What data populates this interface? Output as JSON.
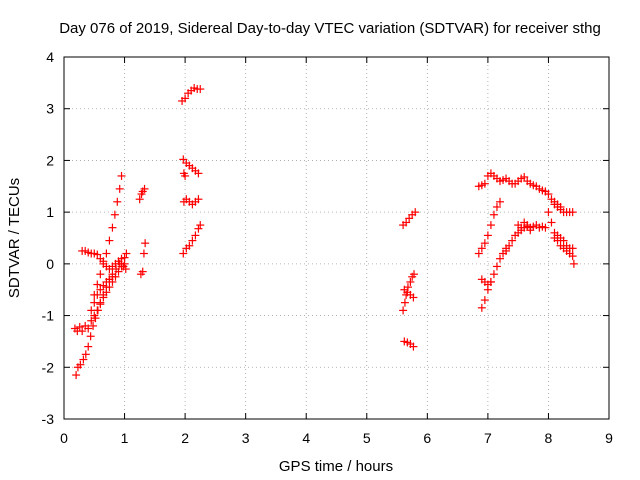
{
  "chart_data": {
    "type": "scatter",
    "title": "Day 076 of 2019, Sidereal Day-to-day VTEC variation (SDTVAR) for receiver sthg",
    "xlabel": "GPS time / hours",
    "ylabel": "SDTVAR / TECUs",
    "xlim": [
      0,
      9
    ],
    "ylim": [
      -3,
      4
    ],
    "xticks": [
      0,
      1,
      2,
      3,
      4,
      5,
      6,
      7,
      8,
      9
    ],
    "yticks": [
      -3,
      -2,
      -1,
      0,
      1,
      2,
      3,
      4
    ],
    "grid": true,
    "marker": "+",
    "marker_color": "#ff0000",
    "series": [
      {
        "points": [
          [
            0.18,
            -1.25
          ],
          [
            0.22,
            -1.3
          ],
          [
            0.26,
            -1.22
          ],
          [
            0.3,
            -1.3
          ],
          [
            0.35,
            -1.2
          ],
          [
            0.4,
            -1.25
          ],
          [
            0.45,
            -1.1
          ],
          [
            0.5,
            -1.0
          ],
          [
            0.55,
            -0.9
          ],
          [
            0.6,
            -0.78
          ],
          [
            0.65,
            -0.65
          ],
          [
            0.7,
            -0.55
          ],
          [
            0.75,
            -0.45
          ],
          [
            0.8,
            -0.35
          ],
          [
            0.85,
            -0.25
          ],
          [
            0.9,
            -0.15
          ],
          [
            0.95,
            -0.05
          ],
          [
            1.0,
            0.0
          ],
          [
            0.2,
            -2.15
          ],
          [
            0.23,
            -2.0
          ],
          [
            0.27,
            -1.95
          ],
          [
            0.32,
            -1.85
          ],
          [
            0.36,
            -1.75
          ],
          [
            0.4,
            -1.6
          ],
          [
            0.44,
            -1.4
          ],
          [
            0.48,
            -1.2
          ],
          [
            0.52,
            -1.05
          ],
          [
            0.56,
            -0.9
          ],
          [
            0.6,
            -0.75
          ],
          [
            0.65,
            -0.6
          ],
          [
            0.7,
            -0.45
          ],
          [
            0.75,
            -0.3
          ],
          [
            0.8,
            -0.2
          ],
          [
            0.86,
            -0.1
          ],
          [
            0.92,
            0.0
          ],
          [
            0.98,
            -0.05
          ],
          [
            1.02,
            -0.1
          ],
          [
            0.45,
            -0.9
          ],
          [
            0.5,
            -0.6
          ],
          [
            0.55,
            -0.4
          ],
          [
            0.6,
            -0.2
          ],
          [
            0.65,
            0.0
          ],
          [
            0.7,
            0.2
          ],
          [
            0.75,
            0.45
          ],
          [
            0.8,
            0.7
          ],
          [
            0.84,
            0.95
          ],
          [
            0.88,
            1.2
          ],
          [
            0.92,
            1.45
          ],
          [
            0.95,
            1.7
          ],
          [
            0.3,
            0.25
          ],
          [
            0.35,
            0.25
          ],
          [
            0.4,
            0.22
          ],
          [
            0.45,
            0.2
          ],
          [
            0.5,
            0.2
          ],
          [
            0.55,
            0.18
          ],
          [
            0.6,
            0.1
          ],
          [
            0.65,
            0.05
          ],
          [
            0.7,
            -0.05
          ],
          [
            0.75,
            -0.1
          ],
          [
            0.8,
            -0.05
          ],
          [
            0.85,
            0.0
          ],
          [
            0.9,
            0.05
          ],
          [
            0.95,
            0.1
          ],
          [
            1.0,
            0.12
          ],
          [
            1.03,
            0.2
          ],
          [
            0.5,
            -0.75
          ],
          [
            0.55,
            -0.6
          ],
          [
            0.6,
            -0.5
          ],
          [
            0.65,
            -0.42
          ],
          [
            0.7,
            -0.35
          ],
          [
            0.75,
            -0.3
          ],
          [
            0.8,
            -0.25
          ],
          [
            1.25,
            1.25
          ],
          [
            1.28,
            1.35
          ],
          [
            1.3,
            1.4
          ],
          [
            1.33,
            1.45
          ],
          [
            1.27,
            -0.2
          ],
          [
            1.3,
            -0.15
          ],
          [
            1.32,
            0.2
          ],
          [
            1.34,
            0.4
          ],
          [
            1.95,
            3.15
          ],
          [
            2.0,
            3.2
          ],
          [
            2.05,
            3.3
          ],
          [
            2.1,
            3.35
          ],
          [
            2.15,
            3.4
          ],
          [
            2.2,
            3.38
          ],
          [
            2.25,
            3.38
          ],
          [
            1.97,
            2.02
          ],
          [
            2.02,
            1.95
          ],
          [
            2.07,
            1.9
          ],
          [
            2.12,
            1.85
          ],
          [
            2.17,
            1.8
          ],
          [
            2.22,
            1.75
          ],
          [
            1.98,
            1.75
          ],
          [
            2.0,
            1.7
          ],
          [
            1.98,
            1.2
          ],
          [
            2.02,
            1.25
          ],
          [
            2.07,
            1.2
          ],
          [
            2.12,
            1.15
          ],
          [
            2.17,
            1.2
          ],
          [
            2.22,
            1.25
          ],
          [
            1.97,
            0.2
          ],
          [
            2.02,
            0.3
          ],
          [
            2.07,
            0.35
          ],
          [
            2.12,
            0.45
          ],
          [
            2.17,
            0.55
          ],
          [
            2.22,
            0.68
          ],
          [
            2.25,
            0.75
          ],
          [
            5.6,
            0.75
          ],
          [
            5.65,
            0.8
          ],
          [
            5.7,
            0.88
          ],
          [
            5.75,
            0.95
          ],
          [
            5.8,
            1.0
          ],
          [
            5.6,
            -0.9
          ],
          [
            5.63,
            -0.75
          ],
          [
            5.65,
            -0.6
          ],
          [
            5.68,
            -0.45
          ],
          [
            5.72,
            -0.35
          ],
          [
            5.75,
            -0.25
          ],
          [
            5.78,
            -0.2
          ],
          [
            5.62,
            -0.5
          ],
          [
            5.67,
            -0.55
          ],
          [
            5.72,
            -0.6
          ],
          [
            5.77,
            -0.65
          ],
          [
            5.62,
            -1.5
          ],
          [
            5.67,
            -1.52
          ],
          [
            5.72,
            -1.55
          ],
          [
            5.77,
            -1.6
          ],
          [
            6.85,
            1.5
          ],
          [
            6.9,
            1.52
          ],
          [
            6.95,
            1.55
          ],
          [
            7.0,
            1.7
          ],
          [
            7.05,
            1.75
          ],
          [
            7.1,
            1.7
          ],
          [
            7.15,
            1.65
          ],
          [
            7.2,
            1.6
          ],
          [
            7.25,
            1.62
          ],
          [
            7.3,
            1.65
          ],
          [
            7.35,
            1.6
          ],
          [
            7.4,
            1.55
          ],
          [
            7.45,
            1.55
          ],
          [
            7.5,
            1.6
          ],
          [
            7.55,
            1.65
          ],
          [
            7.6,
            1.68
          ],
          [
            7.65,
            1.6
          ],
          [
            7.7,
            1.55
          ],
          [
            7.75,
            1.52
          ],
          [
            7.8,
            1.5
          ],
          [
            7.85,
            1.45
          ],
          [
            7.9,
            1.42
          ],
          [
            7.95,
            1.4
          ],
          [
            6.85,
            0.2
          ],
          [
            6.9,
            0.3
          ],
          [
            6.95,
            0.4
          ],
          [
            7.0,
            0.55
          ],
          [
            7.05,
            0.75
          ],
          [
            7.1,
            0.95
          ],
          [
            7.15,
            1.1
          ],
          [
            7.2,
            1.2
          ],
          [
            6.9,
            -0.85
          ],
          [
            6.95,
            -0.7
          ],
          [
            7.0,
            -0.5
          ],
          [
            7.05,
            -0.35
          ],
          [
            7.1,
            -0.2
          ],
          [
            7.15,
            -0.05
          ],
          [
            7.2,
            0.1
          ],
          [
            7.25,
            0.2
          ],
          [
            7.3,
            0.25
          ],
          [
            6.9,
            -0.3
          ],
          [
            6.95,
            -0.35
          ],
          [
            7.0,
            -0.4
          ],
          [
            7.05,
            -0.35
          ],
          [
            7.3,
            0.3
          ],
          [
            7.35,
            0.35
          ],
          [
            7.4,
            0.45
          ],
          [
            7.45,
            0.55
          ],
          [
            7.5,
            0.6
          ],
          [
            7.55,
            0.65
          ],
          [
            7.6,
            0.7
          ],
          [
            7.65,
            0.72
          ],
          [
            7.7,
            0.7
          ],
          [
            7.75,
            0.72
          ],
          [
            7.8,
            0.75
          ],
          [
            7.85,
            0.7
          ],
          [
            7.9,
            0.72
          ],
          [
            7.95,
            0.7
          ],
          [
            7.5,
            0.75
          ],
          [
            7.55,
            0.7
          ],
          [
            7.6,
            0.8
          ],
          [
            7.65,
            0.75
          ],
          [
            7.7,
            0.65
          ],
          [
            7.95,
            1.4
          ],
          [
            8.0,
            1.35
          ],
          [
            8.05,
            1.25
          ],
          [
            8.1,
            1.15
          ],
          [
            8.15,
            1.1
          ],
          [
            8.2,
            1.05
          ],
          [
            8.25,
            1.0
          ],
          [
            8.3,
            1.0
          ],
          [
            8.35,
            1.0
          ],
          [
            8.4,
            1.0
          ],
          [
            8.1,
            1.2
          ],
          [
            8.15,
            1.15
          ],
          [
            8.2,
            1.1
          ],
          [
            8.0,
            1.0
          ],
          [
            8.05,
            0.8
          ],
          [
            8.1,
            0.6
          ],
          [
            8.15,
            0.45
          ],
          [
            8.2,
            0.35
          ],
          [
            8.25,
            0.3
          ],
          [
            8.3,
            0.25
          ],
          [
            8.35,
            0.2
          ],
          [
            8.4,
            0.15
          ],
          [
            8.42,
            0.0
          ],
          [
            8.1,
            0.5
          ],
          [
            8.15,
            0.55
          ],
          [
            8.2,
            0.5
          ],
          [
            8.25,
            0.45
          ],
          [
            8.3,
            0.35
          ],
          [
            8.35,
            0.3
          ],
          [
            8.4,
            0.3
          ]
        ]
      }
    ]
  }
}
